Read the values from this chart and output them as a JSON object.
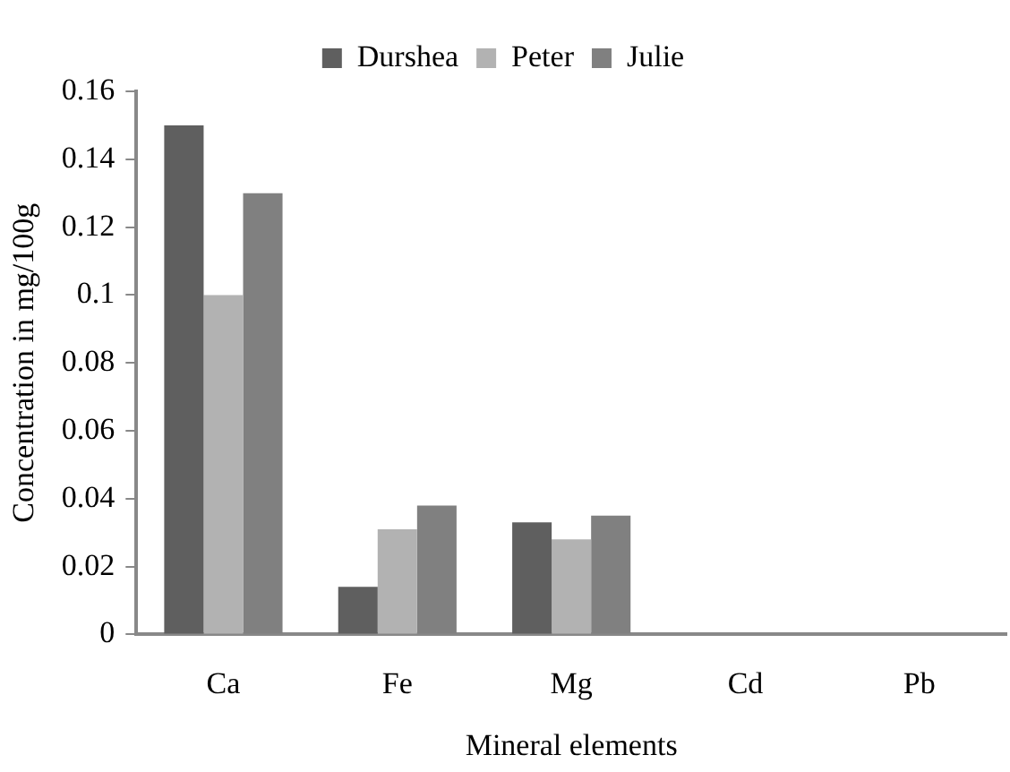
{
  "chart_data": {
    "type": "bar",
    "xlabel": "Mineral elements",
    "ylabel": "Concentration in mg/100g",
    "categories": [
      "Ca",
      "Fe",
      "Mg",
      "Cd",
      "Pb"
    ],
    "series": [
      {
        "name": "Durshea",
        "color": "#5f5f5f",
        "values": [
          0.15,
          0.014,
          0.033,
          0,
          0
        ]
      },
      {
        "name": "Peter",
        "color": "#b2b2b2",
        "values": [
          0.1,
          0.031,
          0.028,
          0,
          0
        ]
      },
      {
        "name": "Julie",
        "color": "#808080",
        "values": [
          0.13,
          0.038,
          0.035,
          0,
          0
        ]
      }
    ],
    "ylim": [
      0,
      0.16
    ],
    "yticks": [
      0,
      0.02,
      0.04,
      0.06,
      0.08,
      0.1,
      0.12,
      0.14,
      0.16
    ],
    "grid": false,
    "legend": "top"
  }
}
